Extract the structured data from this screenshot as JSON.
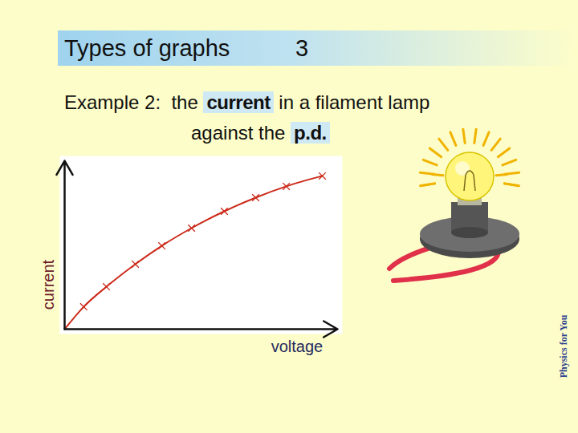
{
  "chart_data": {
    "type": "scatter",
    "title": "Types of graphs",
    "subtitle": [
      [
        {
          "text": "Example 2:  the "
        },
        {
          "text": "current",
          "highlight": true
        },
        {
          "text": " in a filament lamp"
        }
      ],
      [
        {
          "text": "against the "
        },
        {
          "text": "p.d.",
          "highlight": true
        }
      ]
    ],
    "annotations": [
      "3",
      "Physics for You"
    ],
    "x_label": "voltage",
    "y_label": "current",
    "series": [
      {
        "type": "scatter",
        "marker": "x",
        "color": "#cc2a1a",
        "x": [
          0.7,
          1.53,
          2.59,
          3.56,
          4.65,
          5.85,
          7.0,
          8.12,
          9.44
        ],
        "values": [
          1.33,
          2.52,
          3.86,
          4.95,
          6.0,
          7.0,
          7.81,
          8.48,
          9.1
        ]
      },
      {
        "type": "line",
        "line_style": "solid",
        "color": "#cc2a1a",
        "x": [
          0,
          0.7,
          1.53,
          2.59,
          3.56,
          4.65,
          5.85,
          7.0,
          8.12,
          9.44
        ],
        "values": [
          0,
          1.33,
          2.52,
          3.86,
          4.95,
          6.0,
          7.0,
          7.81,
          8.48,
          9.1
        ]
      }
    ],
    "xlim": [
      0,
      10
    ],
    "ylim": [
      0,
      10
    ],
    "xticks": [],
    "yticks": [],
    "grid": false,
    "tick_labels": false
  }
}
